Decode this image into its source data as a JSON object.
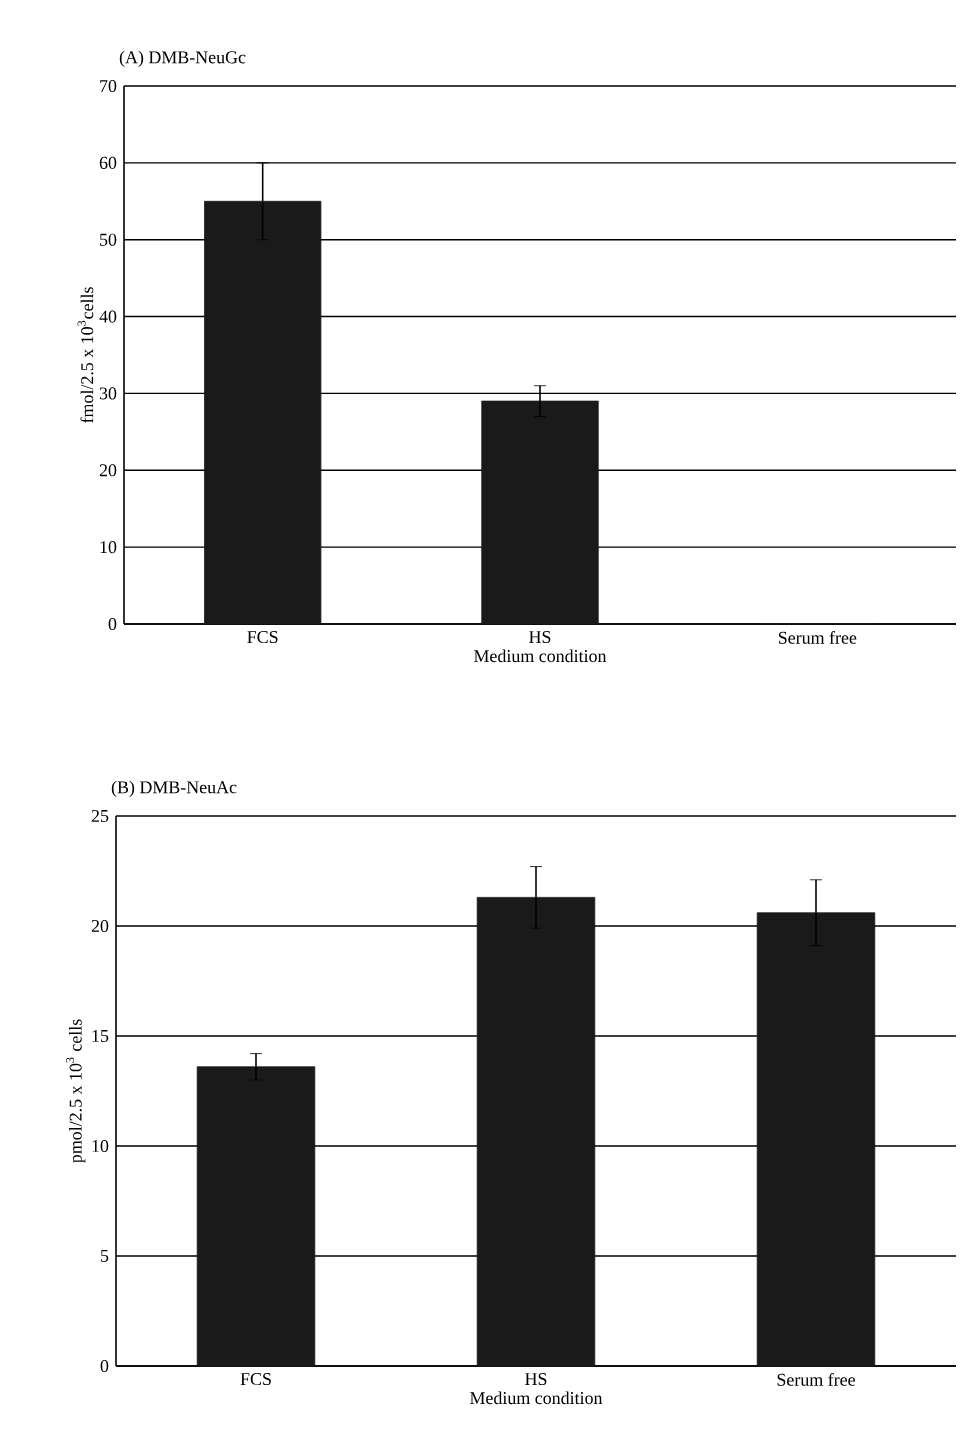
{
  "chart_data": [
    {
      "type": "bar",
      "title": "(A) DMB-NeuGc",
      "xlabel": "Medium condition",
      "ylabel": "fmol/2.5 x 10$^{3}$cells",
      "categories": [
        "FCS",
        "HS",
        "Serum free"
      ],
      "values": [
        55,
        29,
        0
      ],
      "errors": [
        5,
        2,
        null
      ],
      "color": "#1a1a1a",
      "ylim": [
        0,
        70
      ],
      "yticks": [
        0,
        10,
        20,
        30,
        40,
        50,
        60,
        70
      ],
      "grid": "y"
    },
    {
      "type": "bar",
      "title": "(B) DMB-NeuAc",
      "xlabel": "Medium condition",
      "ylabel": "pmol/2.5 x 10$^{3}$ cells",
      "categories": [
        "FCS",
        "HS",
        "Serum free"
      ],
      "values": [
        13.6,
        21.3,
        20.6
      ],
      "errors": [
        0.6,
        1.4,
        1.5
      ],
      "color": "#1a1a1a",
      "ylim": [
        0,
        25
      ],
      "yticks": [
        0,
        5,
        10,
        15,
        20,
        25
      ],
      "grid": "y"
    }
  ]
}
